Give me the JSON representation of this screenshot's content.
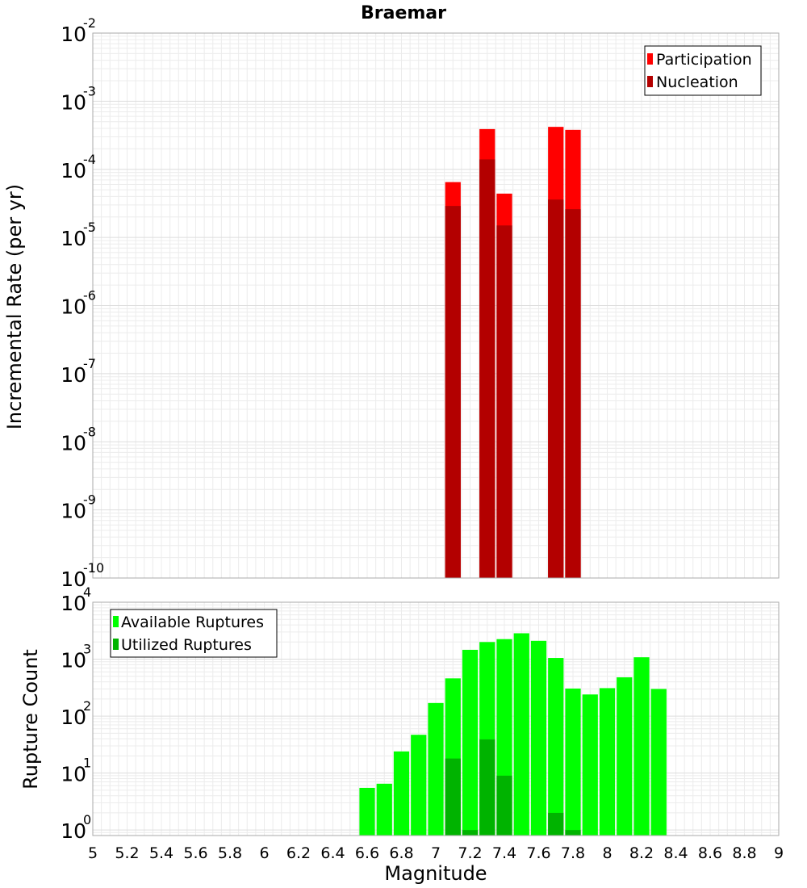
{
  "title": "Braemar",
  "chart_data": [
    {
      "type": "bar",
      "ylabel": "Incremental Rate (per yr)",
      "yscale": "log",
      "ylim": [
        1e-10,
        0.01
      ],
      "xlim": [
        5,
        9
      ],
      "bin_width": 0.1,
      "legend_position": "top-right",
      "legend": [
        "Participation",
        "Nucleation"
      ],
      "colors": {
        "Participation": "#ff0000",
        "Nucleation": "#b30000"
      },
      "x": [
        7.1,
        7.3,
        7.4,
        7.7,
        7.8
      ],
      "series": [
        {
          "name": "Participation",
          "values": [
            6.5e-05,
            0.00039,
            4.4e-05,
            0.00042,
            0.00038
          ]
        },
        {
          "name": "Nucleation",
          "values": [
            2.9e-05,
            0.00014,
            1.5e-05,
            3.6e-05,
            2.6e-05
          ]
        }
      ],
      "yticks": [
        {
          "base": "10",
          "exp": "-10"
        },
        {
          "base": "10",
          "exp": "-9"
        },
        {
          "base": "10",
          "exp": "-8"
        },
        {
          "base": "10",
          "exp": "-7"
        },
        {
          "base": "10",
          "exp": "-6"
        },
        {
          "base": "10",
          "exp": "-5"
        },
        {
          "base": "10",
          "exp": "-4"
        },
        {
          "base": "10",
          "exp": "-3"
        },
        {
          "base": "10",
          "exp": "-2"
        }
      ]
    },
    {
      "type": "bar",
      "ylabel": "Rupture Count",
      "xlabel": "Magnitude",
      "yscale": "log",
      "ylim": [
        0.8,
        10000
      ],
      "xlim": [
        5,
        9
      ],
      "bin_width": 0.1,
      "legend_position": "top-left",
      "legend": [
        "Available Ruptures",
        "Utilized Ruptures"
      ],
      "colors": {
        "Available Ruptures": "#00ff00",
        "Utilized Ruptures": "#00b300"
      },
      "x": [
        6.6,
        6.7,
        6.8,
        6.9,
        7.0,
        7.1,
        7.2,
        7.3,
        7.4,
        7.5,
        7.6,
        7.7,
        7.8,
        7.9,
        8.0,
        8.1,
        8.2,
        8.3
      ],
      "series": [
        {
          "name": "Available Ruptures",
          "values": [
            5.5,
            6.5,
            24,
            47,
            170,
            460,
            1460,
            2000,
            2250,
            2850,
            2100,
            1050,
            305,
            240,
            310,
            480,
            1080,
            300
          ]
        },
        {
          "name": "Utilized Ruptures",
          "values": [
            null,
            null,
            null,
            null,
            null,
            18,
            1,
            39,
            9,
            null,
            null,
            2,
            1,
            null,
            null,
            null,
            null,
            null
          ]
        }
      ],
      "yticks": [
        {
          "base": "10",
          "exp": "0"
        },
        {
          "base": "10",
          "exp": "1"
        },
        {
          "base": "10",
          "exp": "2"
        },
        {
          "base": "10",
          "exp": "3"
        },
        {
          "base": "10",
          "exp": "4"
        }
      ]
    }
  ],
  "xticks": [
    "5",
    "5.2",
    "5.4",
    "5.6",
    "5.8",
    "6",
    "6.2",
    "6.4",
    "6.6",
    "6.8",
    "7",
    "7.2",
    "7.4",
    "7.6",
    "7.8",
    "8",
    "8.2",
    "8.4",
    "8.6",
    "8.8",
    "9"
  ]
}
